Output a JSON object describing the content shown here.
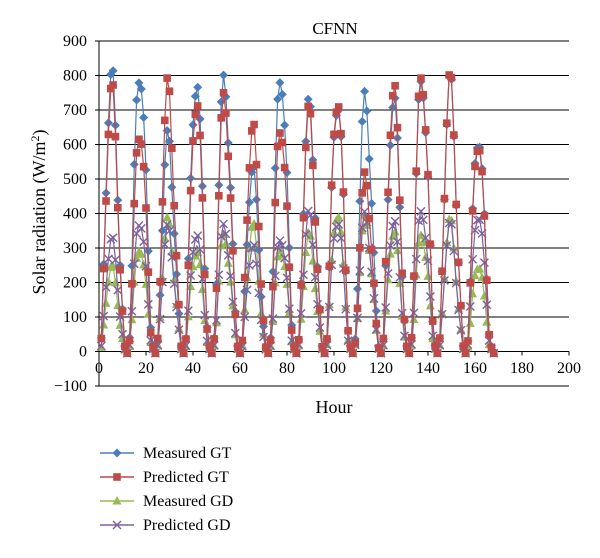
{
  "chart_data": {
    "type": "line",
    "title": "CFNN",
    "xlabel": "Hour",
    "ylabel_main": "Solar radiation (W/m",
    "ylabel_sup": "2",
    "ylabel_tail": ")",
    "xlim": [
      0,
      200
    ],
    "ylim": [
      -100,
      900
    ],
    "xticks": [
      "0",
      "20",
      "40",
      "60",
      "80",
      "100",
      "120",
      "140",
      "160",
      "180",
      "200"
    ],
    "yticks": [
      "−100",
      "0",
      "100",
      "200",
      "300",
      "400",
      "500",
      "600",
      "700",
      "800",
      "900"
    ],
    "grid": "horizontal",
    "legend_position": "bottom-left",
    "peak_days": [
      {
        "start": 0,
        "gt_m": 790,
        "gt_p": 750,
        "gd_m": 240,
        "gd_p": 320
      },
      {
        "start": 12,
        "gt_m": 810,
        "gt_p": 640,
        "gd_m": 300,
        "gd_p": 380
      },
      {
        "start": 24,
        "gt_m": 610,
        "gt_p": 755,
        "gd_m": 370,
        "gd_p": 350
      },
      {
        "start": 36,
        "gt_m": 775,
        "gt_p": 720,
        "gd_m": 290,
        "gd_p": 340
      },
      {
        "start": 48,
        "gt_m": 780,
        "gt_p": 730,
        "gd_m": 330,
        "gd_p": 360
      },
      {
        "start": 60,
        "gt_m": 520,
        "gt_p": 640,
        "gd_m": 360,
        "gd_p": 300
      },
      {
        "start": 72,
        "gt_m": 800,
        "gt_p": 650,
        "gd_m": 300,
        "gd_p": 330
      },
      {
        "start": 84,
        "gt_m": 700,
        "gt_p": 680,
        "gd_m": 330,
        "gd_p": 390
      },
      {
        "start": 96,
        "gt_m": 720,
        "gt_p": 730,
        "gd_m": 400,
        "gd_p": 380
      },
      {
        "start": 108,
        "gt_m": 725,
        "gt_p": 500,
        "gd_m": 380,
        "gd_p": 390
      },
      {
        "start": 120,
        "gt_m": 720,
        "gt_p": 755,
        "gd_m": 340,
        "gd_p": 370
      },
      {
        "start": 132,
        "gt_m": 790,
        "gt_p": 800,
        "gd_m": 340,
        "gd_p": 410
      },
      {
        "start": 144,
        "gt_m": 770,
        "gt_p": 775,
        "gd_m": 370,
        "gd_p": 360
      },
      {
        "start": 156,
        "gt_m": 620,
        "gt_p": 610,
        "gd_m": 250,
        "gd_p": 400
      }
    ],
    "series": [
      {
        "name": "Measured GT",
        "key": "gt_m",
        "color": "#4a7ebb",
        "marker": "diamond"
      },
      {
        "name": "Predicted GT",
        "key": "gt_p",
        "color": "#be4b48",
        "marker": "square"
      },
      {
        "name": "Measured GD",
        "key": "gd_m",
        "color": "#98b954",
        "marker": "triangle"
      },
      {
        "name": "Predicted GD",
        "key": "gd_p",
        "color": "#7d60a0",
        "marker": "x"
      }
    ]
  }
}
